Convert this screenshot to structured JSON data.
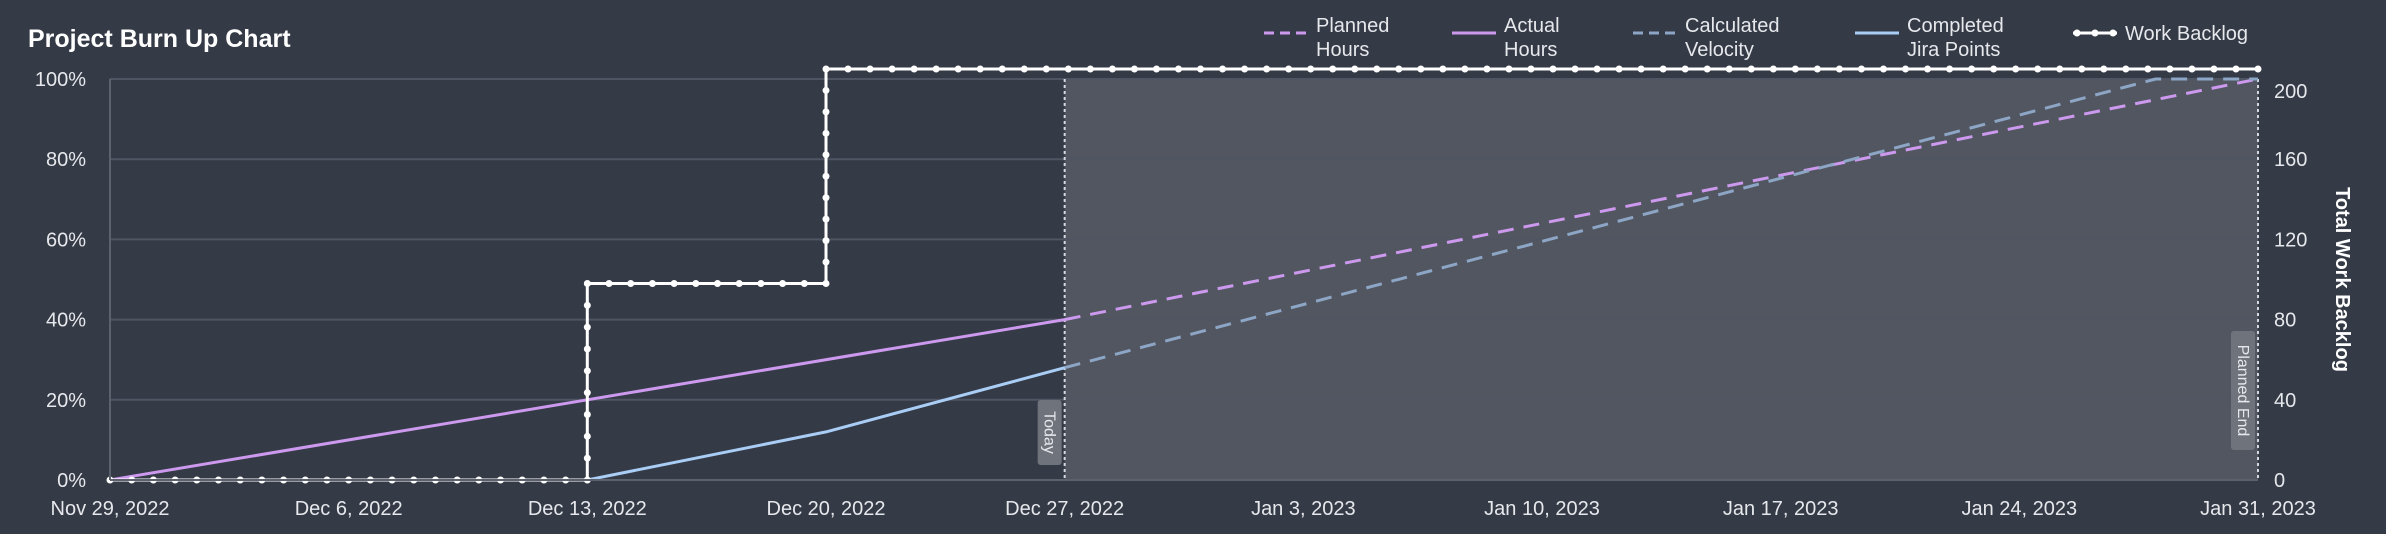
{
  "chart_data": {
    "type": "line",
    "title": "Project Burn Up Chart",
    "x_start": "2022-11-29",
    "x_end": "2023-01-31",
    "x_ticks": [
      "Nov 29, 2022",
      "Dec 6, 2022",
      "Dec 13, 2022",
      "Dec 20, 2022",
      "Dec 27, 2022",
      "Jan 3, 2023",
      "Jan 10, 2023",
      "Jan 17, 2023",
      "Jan 24, 2023",
      "Jan 31, 2023"
    ],
    "y_left": {
      "ticks": [
        "0%",
        "20%",
        "40%",
        "60%",
        "80%",
        "100%"
      ],
      "ylim": [
        0,
        100
      ]
    },
    "y_right": {
      "label": "Total Work Backlog",
      "ticks": [
        "0",
        "40",
        "80",
        "120",
        "160",
        "200"
      ],
      "ylim": [
        0,
        200
      ]
    },
    "grid": true,
    "legend_position": "top-right",
    "markers": [
      {
        "label": "Today",
        "date": "2022-12-27"
      },
      {
        "label": "Planned End",
        "date": "2023-01-31"
      }
    ],
    "series": [
      {
        "name": "Planned Hours",
        "legend": [
          "Planned",
          "Hours"
        ],
        "axis": "left",
        "style": "dashed",
        "color": "#cc99ee",
        "points": [
          [
            "2022-12-27",
            40
          ],
          [
            "2023-01-31",
            100
          ]
        ]
      },
      {
        "name": "Actual Hours",
        "legend": [
          "Actual",
          "Hours"
        ],
        "axis": "left",
        "style": "solid",
        "color": "#cc99ee",
        "points": [
          [
            "2022-11-29",
            0
          ],
          [
            "2022-12-27",
            40
          ]
        ]
      },
      {
        "name": "Calculated Velocity",
        "legend": [
          "Calculated",
          "Velocity"
        ],
        "axis": "left",
        "style": "dashed",
        "color": "#8da6c6",
        "points": [
          [
            "2022-12-27",
            28
          ],
          [
            "2023-01-28",
            100
          ],
          [
            "2023-01-31",
            100
          ]
        ]
      },
      {
        "name": "Completed Jira Points",
        "legend": [
          "Completed",
          "Jira Points"
        ],
        "axis": "left",
        "style": "solid",
        "color": "#a9cdf5",
        "points": [
          [
            "2022-11-29",
            0
          ],
          [
            "2022-12-13",
            0
          ],
          [
            "2022-12-20",
            12
          ],
          [
            "2022-12-27",
            28
          ]
        ]
      },
      {
        "name": "Work Backlog",
        "legend": [
          "Work Backlog"
        ],
        "axis": "right",
        "style": "step-dots",
        "color": "#ffffff",
        "points": [
          [
            "2022-11-29",
            0
          ],
          [
            "2022-12-13",
            0
          ],
          [
            "2022-12-13",
            98
          ],
          [
            "2022-12-20",
            98
          ],
          [
            "2022-12-20",
            205
          ],
          [
            "2023-01-31",
            205
          ]
        ]
      }
    ]
  }
}
